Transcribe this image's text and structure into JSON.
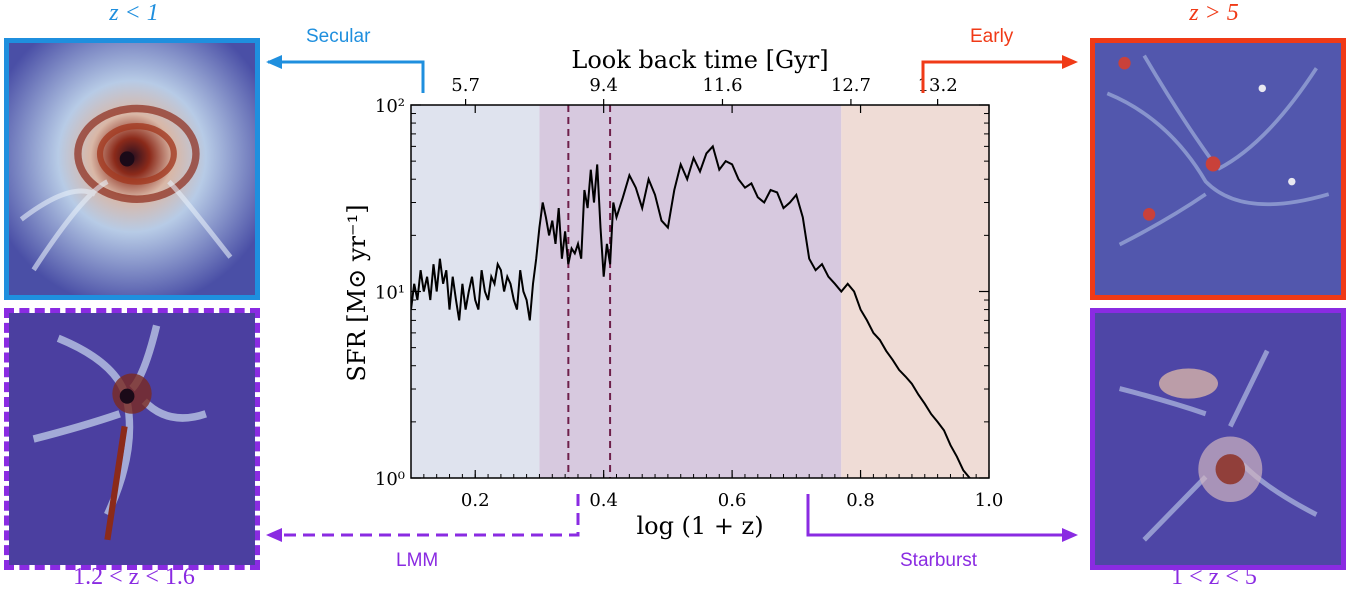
{
  "panels": {
    "top_left": {
      "label": "z < 1",
      "color": "#1f8fde",
      "phase": "Secular"
    },
    "top_right": {
      "label": "z > 5",
      "color": "#f03a17",
      "phase": "Early"
    },
    "bottom_left": {
      "label": "1.2 < z < 1.6",
      "color": "#8a2be2",
      "phase": "LMM",
      "style": "dashed"
    },
    "bottom_right": {
      "label": "1 < z < 5",
      "color": "#8a2be2",
      "phase": "Starburst"
    }
  },
  "chart_data": {
    "type": "line",
    "xlabel": "log (1 + z)",
    "ylabel": "SFR [M⊙ yr⁻¹]",
    "top_xlabel": "Look back time [Gyr]",
    "xlim": [
      0.1,
      1.0
    ],
    "ylim": [
      1,
      100
    ],
    "yscale": "log",
    "x_ticks": [
      "0.2",
      "0.4",
      "0.6",
      "0.8",
      "1.0"
    ],
    "x_tick_values": [
      0.2,
      0.4,
      0.6,
      0.8,
      1.0
    ],
    "y_ticks": [
      "10⁰",
      "10¹",
      "10²"
    ],
    "y_tick_values": [
      1,
      10,
      100
    ],
    "top_ticks": [
      "5.7",
      "9.4",
      "11.6",
      "12.7",
      "13.2"
    ],
    "top_tick_values": [
      0.185,
      0.4,
      0.585,
      0.785,
      0.92
    ],
    "shaded_regions": [
      {
        "name": "Secular",
        "x_range": [
          0.1,
          0.3
        ],
        "color": "#dfe3ee"
      },
      {
        "name": "Starburst",
        "x_range": [
          0.3,
          0.77
        ],
        "color": "#d7c9df"
      },
      {
        "name": "Early",
        "x_range": [
          0.77,
          1.0
        ],
        "color": "#efdcd6"
      }
    ],
    "vlines": [
      {
        "x": 0.345,
        "style": "dashed",
        "color": "#6e1f4a"
      },
      {
        "x": 0.41,
        "style": "dashed",
        "color": "#6e1f4a"
      }
    ],
    "series": [
      {
        "x": [
          0.1,
          0.105,
          0.11,
          0.115,
          0.12,
          0.125,
          0.13,
          0.135,
          0.14,
          0.145,
          0.15,
          0.155,
          0.16,
          0.165,
          0.17,
          0.175,
          0.18,
          0.185,
          0.19,
          0.195,
          0.2,
          0.205,
          0.21,
          0.215,
          0.22,
          0.225,
          0.23,
          0.235,
          0.24,
          0.245,
          0.25,
          0.255,
          0.26,
          0.265,
          0.27,
          0.275,
          0.28,
          0.285,
          0.29,
          0.295,
          0.3,
          0.305,
          0.31,
          0.315,
          0.32,
          0.325,
          0.33,
          0.335,
          0.34,
          0.345,
          0.35,
          0.355,
          0.36,
          0.365,
          0.37,
          0.375,
          0.38,
          0.385,
          0.39,
          0.395,
          0.4,
          0.405,
          0.41,
          0.415,
          0.42,
          0.43,
          0.44,
          0.45,
          0.46,
          0.47,
          0.48,
          0.49,
          0.5,
          0.51,
          0.52,
          0.53,
          0.54,
          0.55,
          0.56,
          0.57,
          0.58,
          0.59,
          0.6,
          0.61,
          0.62,
          0.63,
          0.64,
          0.65,
          0.66,
          0.67,
          0.68,
          0.69,
          0.7,
          0.71,
          0.72,
          0.73,
          0.74,
          0.75,
          0.76,
          0.77,
          0.78,
          0.79,
          0.8,
          0.81,
          0.82,
          0.83,
          0.84,
          0.85,
          0.86,
          0.87,
          0.88,
          0.89,
          0.9,
          0.91,
          0.92,
          0.93,
          0.94,
          0.95,
          0.96,
          0.97,
          0.98
        ],
        "y": [
          8,
          11,
          9,
          13,
          10,
          12,
          9,
          14,
          10,
          15,
          11,
          13,
          8,
          12,
          9,
          7,
          11,
          8,
          10,
          12,
          9,
          8,
          13,
          10,
          9,
          12,
          11,
          14,
          13,
          10,
          12,
          11,
          9,
          8,
          13,
          10,
          9,
          7,
          11,
          15,
          22,
          30,
          25,
          20,
          24,
          18,
          28,
          15,
          21,
          14,
          17,
          16,
          18,
          15,
          35,
          28,
          45,
          30,
          48,
          22,
          12,
          18,
          14,
          30,
          25,
          32,
          42,
          36,
          28,
          40,
          33,
          24,
          22,
          35,
          48,
          40,
          52,
          44,
          55,
          60,
          45,
          50,
          48,
          40,
          36,
          38,
          32,
          30,
          35,
          34,
          28,
          30,
          33,
          25,
          15,
          13,
          14,
          12,
          11,
          10,
          11,
          10,
          8,
          7,
          6,
          5.5,
          4.8,
          4.3,
          3.8,
          3.5,
          3.2,
          2.8,
          2.5,
          2.2,
          2.0,
          1.8,
          1.5,
          1.3,
          1.1,
          1.0,
          0.95
        ]
      }
    ]
  }
}
